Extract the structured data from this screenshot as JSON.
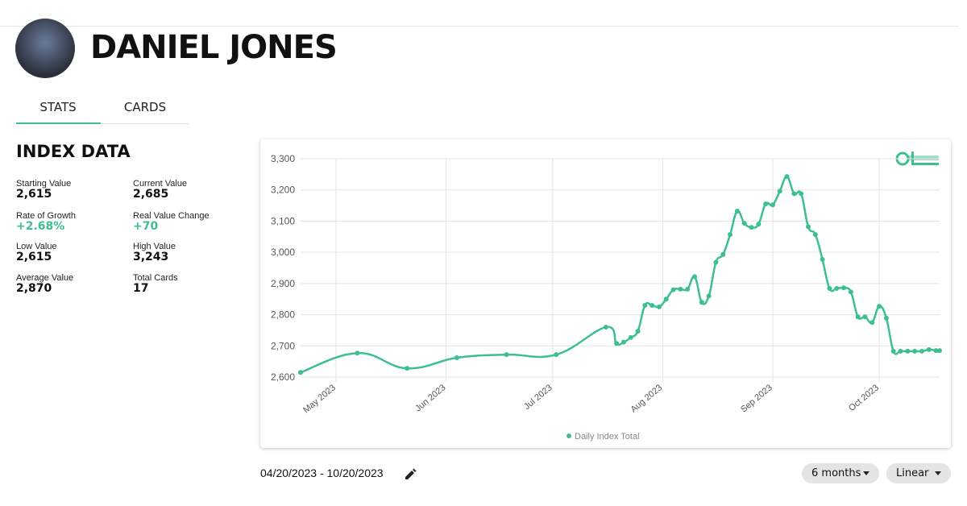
{
  "header": {
    "name": "DANIEL JONES"
  },
  "tabs": [
    "STATS",
    "CARDS"
  ],
  "index_data": {
    "title": "INDEX DATA",
    "stats": [
      {
        "label": "Starting Value",
        "value": "2,615"
      },
      {
        "label": "Current Value",
        "value": "2,685"
      },
      {
        "label": "Rate of Growth",
        "value": "+2.68%"
      },
      {
        "label": "Real Value Change",
        "value": "+70"
      },
      {
        "label": "Low Value",
        "value": "2,615"
      },
      {
        "label": "High Value",
        "value": "3,243"
      },
      {
        "label": "Average Value",
        "value": "2,870"
      },
      {
        "label": "Total Cards",
        "value": "17"
      }
    ]
  },
  "chart_data": {
    "type": "line",
    "grid": true,
    "x": [
      "2023-04-21",
      "2023-05-07",
      "2023-05-21",
      "2023-06-04",
      "2023-06-18",
      "2023-07-02",
      "2023-07-16",
      "2023-07-19",
      "2023-07-21",
      "2023-07-23",
      "2023-07-25",
      "2023-07-27",
      "2023-07-29",
      "2023-07-31",
      "2023-08-02",
      "2023-08-04",
      "2023-08-06",
      "2023-08-08",
      "2023-08-10",
      "2023-08-12",
      "2023-08-14",
      "2023-08-16",
      "2023-08-18",
      "2023-08-20",
      "2023-08-22",
      "2023-08-24",
      "2023-08-26",
      "2023-08-28",
      "2023-08-30",
      "2023-09-01",
      "2023-09-03",
      "2023-09-05",
      "2023-09-07",
      "2023-09-09",
      "2023-09-11",
      "2023-09-13",
      "2023-09-15",
      "2023-09-17",
      "2023-09-19",
      "2023-09-21",
      "2023-09-23",
      "2023-09-25",
      "2023-09-27",
      "2023-09-29",
      "2023-10-01",
      "2023-10-03",
      "2023-10-05",
      "2023-10-07",
      "2023-10-09",
      "2023-10-11",
      "2023-10-13",
      "2023-10-15",
      "2023-10-17",
      "2023-10-18"
    ],
    "series": [
      {
        "name": "Daily Index Total",
        "color": "#3dbf8e",
        "values": [
          2615,
          2677,
          2628,
          2662,
          2672,
          2672,
          2760,
          2708,
          2712,
          2727,
          2747,
          2830,
          2830,
          2825,
          2850,
          2880,
          2882,
          2882,
          2922,
          2840,
          2860,
          2968,
          2993,
          3057,
          3132,
          3093,
          3080,
          3090,
          3155,
          3152,
          3196,
          3243,
          3188,
          3188,
          3082,
          3057,
          2977,
          2884,
          2884,
          2886,
          2873,
          2793,
          2793,
          2775,
          2827,
          2789,
          2683,
          2683,
          2683,
          2683,
          2683,
          2688,
          2685,
          2685
        ]
      }
    ],
    "xlim": [
      "2023-04-21",
      "2023-10-18"
    ],
    "xticks": [
      {
        "value": "2023-05-01",
        "label": "May 2023"
      },
      {
        "value": "2023-06-01",
        "label": "Jun 2023"
      },
      {
        "value": "2023-07-01",
        "label": "Jul 2023"
      },
      {
        "value": "2023-08-01",
        "label": "Aug 2023"
      },
      {
        "value": "2023-09-01",
        "label": "Sep 2023"
      },
      {
        "value": "2023-10-01",
        "label": "Oct 2023"
      }
    ],
    "ylim": [
      2600,
      3300
    ],
    "yticks": [
      {
        "value": 2600,
        "label": "2,600"
      },
      {
        "value": 2700,
        "label": "2,700"
      },
      {
        "value": 2800,
        "label": "2,800"
      },
      {
        "value": 2900,
        "label": "2,900"
      },
      {
        "value": 3000,
        "label": "3,000"
      },
      {
        "value": 3100,
        "label": "3,100"
      },
      {
        "value": 3200,
        "label": "3,200"
      },
      {
        "value": 3300,
        "label": "3,300"
      }
    ]
  },
  "footer": {
    "date_range": "04/20/2023 - 10/20/2023",
    "period": "6 months",
    "scale": "Linear"
  }
}
